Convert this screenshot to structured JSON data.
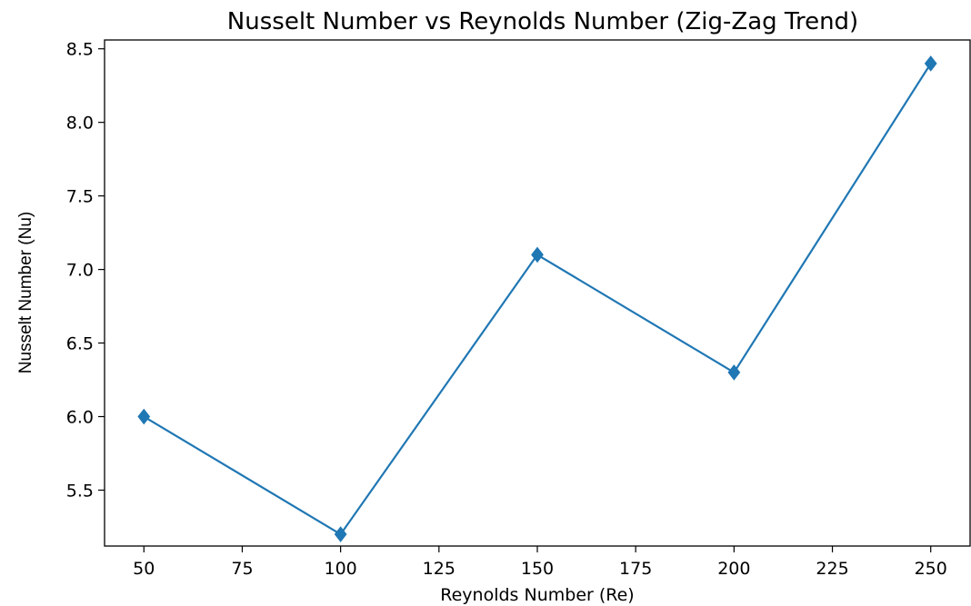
{
  "chart_data": {
    "type": "line",
    "title": "Nusselt Number vs Reynolds Number (Zig-Zag Trend)",
    "xlabel": "Reynolds Number (Re)",
    "ylabel": "Nusselt Number (Nu)",
    "xlim": [
      40,
      260
    ],
    "ylim": [
      5.12,
      8.56
    ],
    "x_ticks": [
      50,
      75,
      100,
      125,
      150,
      175,
      200,
      225,
      250
    ],
    "x_tick_labels": [
      "50",
      "75",
      "100",
      "125",
      "150",
      "175",
      "200",
      "225",
      "250"
    ],
    "y_ticks": [
      5.5,
      6.0,
      6.5,
      7.0,
      7.5,
      8.0,
      8.5
    ],
    "y_tick_labels": [
      "5.5",
      "6.0",
      "6.5",
      "7.0",
      "7.5",
      "8.0",
      "8.5"
    ],
    "grid": false,
    "marker": "diamond",
    "color": "#1f77b4",
    "series": [
      {
        "x": [
          50,
          100,
          150,
          200,
          250
        ],
        "y": [
          6.0,
          5.2,
          7.1,
          6.3,
          8.4
        ]
      }
    ]
  }
}
